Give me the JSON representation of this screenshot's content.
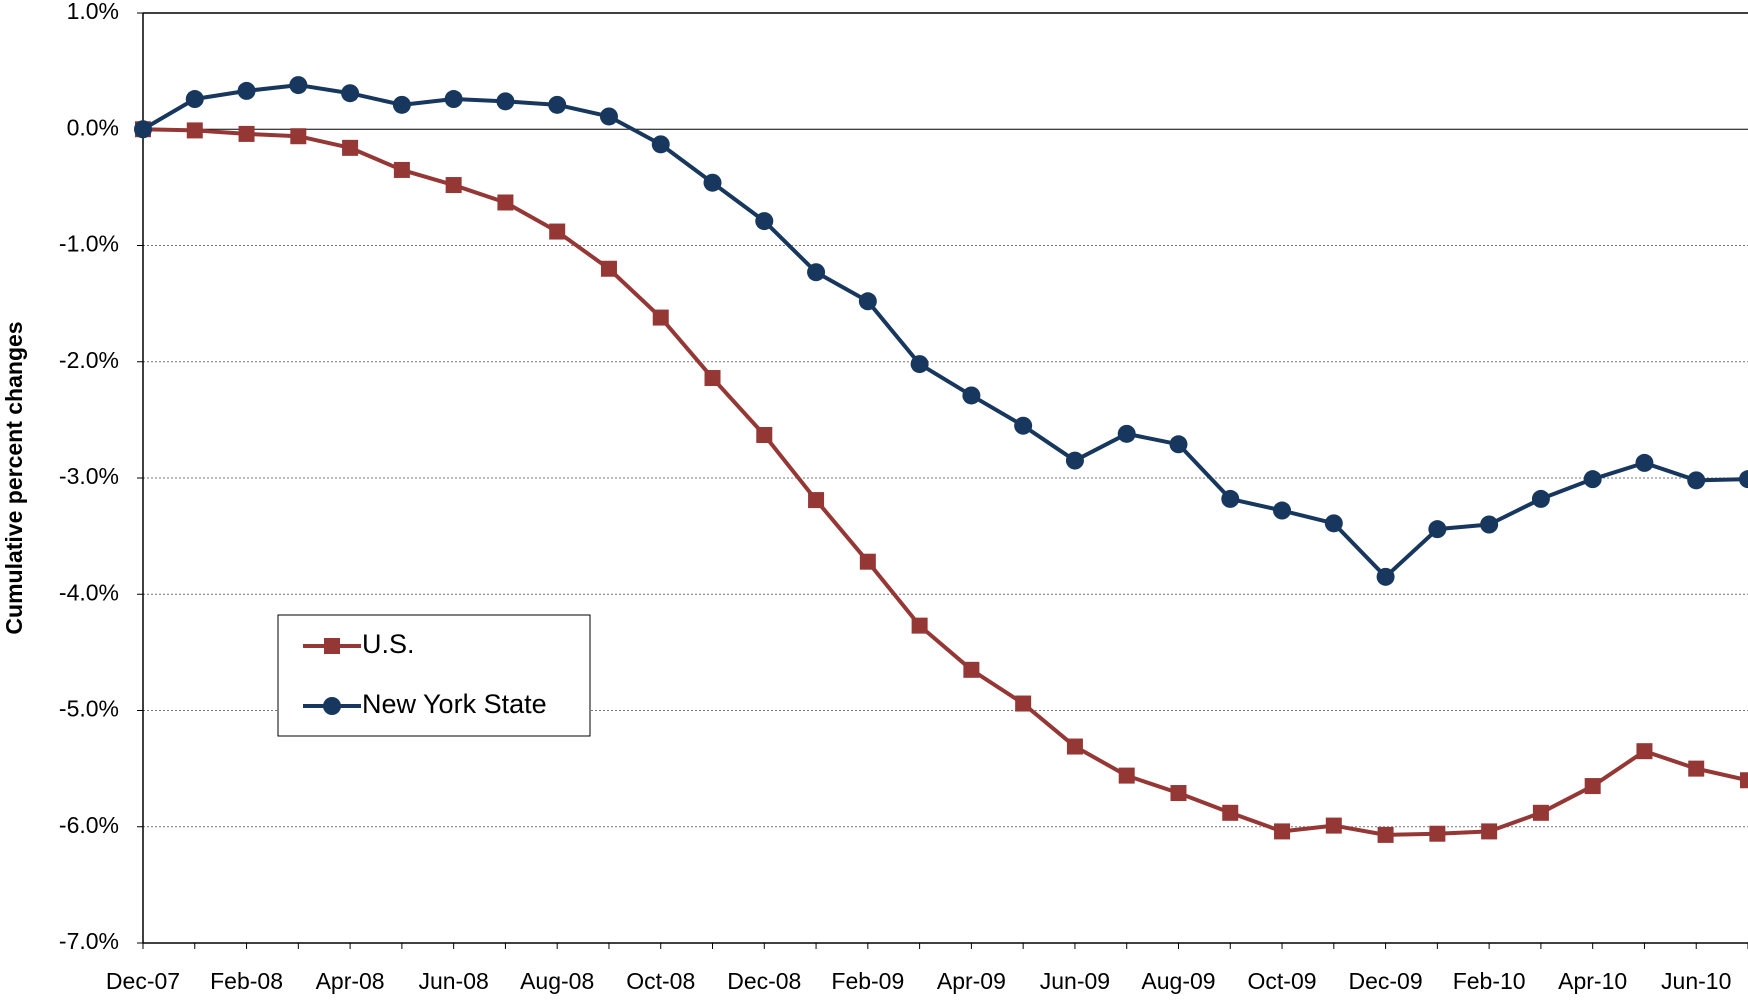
{
  "chart_data": {
    "type": "line",
    "y_axis_label": "Cumulative percent changes",
    "categories": [
      "Dec-07",
      null,
      "Feb-08",
      null,
      "Apr-08",
      null,
      "Jun-08",
      null,
      "Aug-08",
      null,
      "Oct-08",
      null,
      "Dec-08",
      null,
      "Feb-09",
      null,
      "Apr-09",
      null,
      "Jun-09",
      null,
      "Aug-09",
      null,
      "Oct-09",
      null,
      "Dec-09",
      null,
      "Feb-10",
      null,
      "Apr-10",
      null,
      "Jun-10",
      null
    ],
    "series": [
      {
        "name": "U.S.",
        "color": "#953735",
        "marker": "square",
        "values": [
          0,
          -0.01,
          -0.04,
          -0.06,
          -0.16,
          -0.35,
          -0.48,
          -0.63,
          -0.88,
          -1.2,
          -1.62,
          -2.14,
          -2.63,
          -3.19,
          -3.72,
          -4.27,
          -4.65,
          -4.94,
          -5.31,
          -5.56,
          -5.71,
          -5.88,
          -6.04,
          -5.99,
          -6.07,
          -6.06,
          -6.04,
          -5.88,
          -5.65,
          -5.35,
          -5.5,
          -5.6
        ]
      },
      {
        "name": "New York State",
        "color": "#17375e",
        "marker": "circle",
        "values": [
          0,
          0.26,
          0.33,
          0.38,
          0.31,
          0.21,
          0.26,
          0.24,
          0.21,
          0.11,
          -0.13,
          -0.46,
          -0.79,
          -1.23,
          -1.48,
          -2.02,
          -2.29,
          -2.55,
          -2.85,
          -2.62,
          -2.71,
          -3.18,
          -3.28,
          -3.39,
          -3.85,
          -3.44,
          -3.4,
          -3.18,
          -3.01,
          -2.87,
          -3.02,
          -3.01
        ]
      }
    ],
    "ylim": [
      -7,
      1
    ],
    "yticks": [
      {
        "value": 1,
        "label": "1.0%"
      },
      {
        "value": 0,
        "label": "0.0%"
      },
      {
        "value": -1,
        "label": "-1.0%"
      },
      {
        "value": -2,
        "label": "-2.0%"
      },
      {
        "value": -3,
        "label": "-3.0%"
      },
      {
        "value": -4,
        "label": "-4.0%"
      },
      {
        "value": -5,
        "label": "-5.0%"
      },
      {
        "value": -6,
        "label": "-6.0%"
      },
      {
        "value": -7,
        "label": "-7.0%"
      }
    ],
    "grid": true,
    "legend_position": "left"
  }
}
